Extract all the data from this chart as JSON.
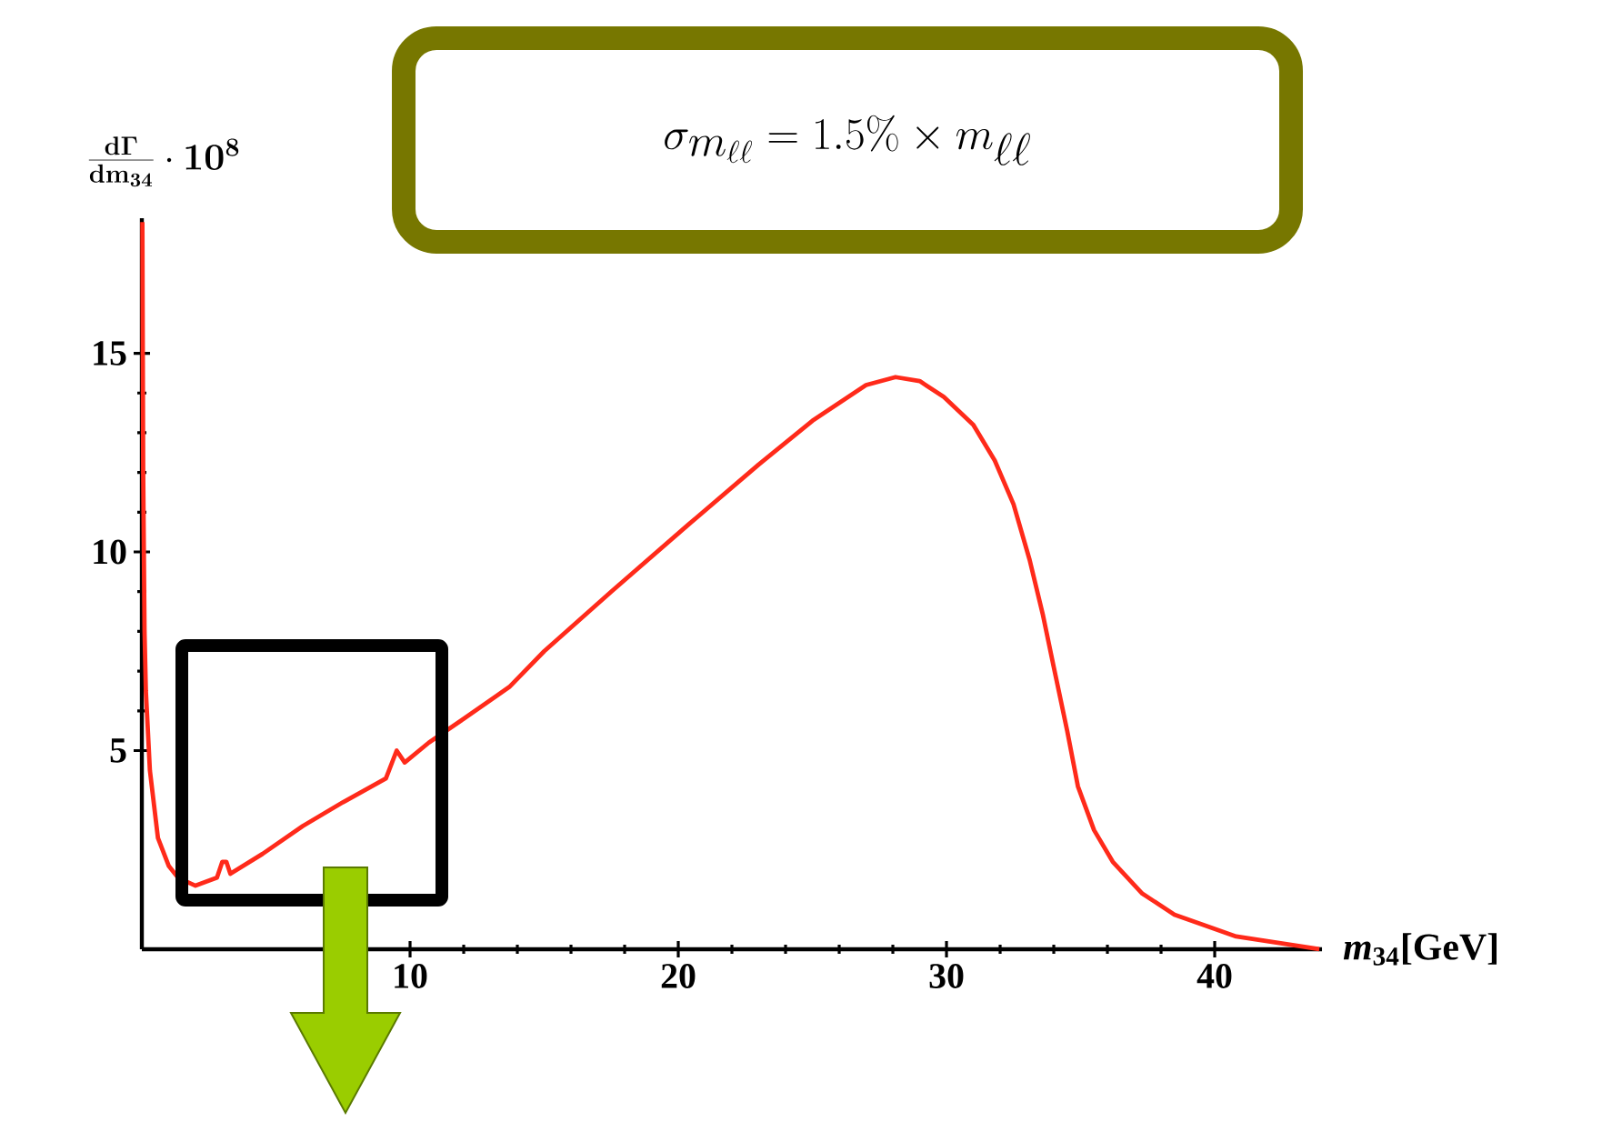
{
  "chart_data": {
    "type": "line",
    "xlabel": "*m*$_{34}$[GeV]",
    "ylabel": "\\frac{\\mathbf{d\\Gamma}}{\\mathbf{dm_{34}}}\\cdot\\mathbf{10^{8}}",
    "annotations": [
      "\\sigma_{m_{\\ell\\ell}} = 1.5\\% \\times m_{\\ell\\ell}"
    ],
    "xlim": [
      0,
      44
    ],
    "ylim": [
      0,
      18.4
    ],
    "xticks": [
      10,
      20,
      30,
      40
    ],
    "yticks": [
      5,
      10,
      15
    ],
    "marker": "none",
    "line_style": "solid",
    "series": [
      {
        "color": "#ff2a1a",
        "x": [
          0.02,
          0.05,
          0.1,
          0.15,
          0.3,
          0.6,
          1.0,
          1.35,
          2.0,
          2.8,
          3.0,
          3.15,
          3.3,
          4.5,
          6,
          7.5,
          9.1,
          9.5,
          9.8,
          10.7,
          12,
          13.7,
          15,
          17.5,
          20.4,
          23,
          25,
          27,
          28.1,
          29,
          29.9,
          31,
          31.8,
          32.5,
          33.1,
          33.6,
          34.0,
          34.5,
          34.9,
          35.5,
          36.2,
          37.3,
          38.5,
          40.8,
          43.9
        ],
        "values": [
          18.3,
          12,
          8,
          6.5,
          4.5,
          2.8,
          2.1,
          1.8,
          1.6,
          1.8,
          2.2,
          2.2,
          1.9,
          2.4,
          3.1,
          3.7,
          4.3,
          5.0,
          4.7,
          5.2,
          5.8,
          6.6,
          7.5,
          9.0,
          10.7,
          12.2,
          13.3,
          14.2,
          14.4,
          14.3,
          13.9,
          13.2,
          12.3,
          11.2,
          9.8,
          8.4,
          7.1,
          5.5,
          4.1,
          3.0,
          2.2,
          1.4,
          0.87,
          0.32,
          0
        ]
      }
    ]
  }
}
